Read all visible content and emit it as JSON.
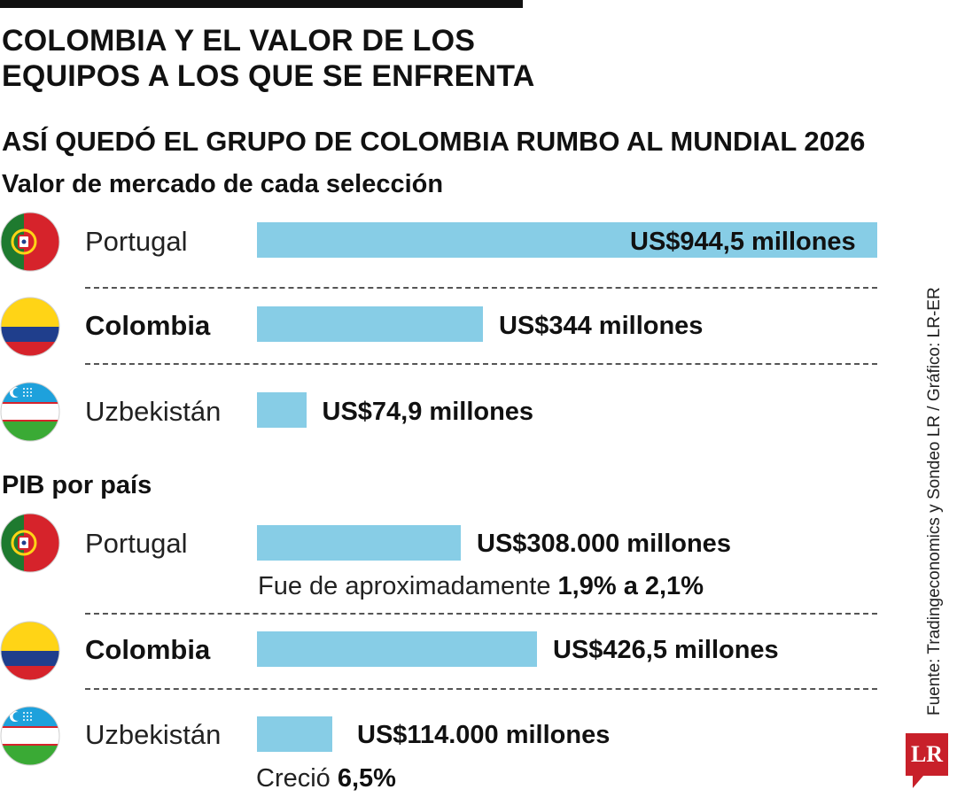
{
  "title": "COLOMBIA Y EL VALOR DE LOS EQUIPOS A LOS QUE SE ENFRENTA",
  "subtitle": "ASÍ QUEDÓ EL GRUPO DE COLOMBIA RUMBO AL MUNDIAL 2026",
  "source": "Fuente: Tradingeconomics y Sondeo LR / Gráfico: LR-ER",
  "logo": "LR",
  "colors": {
    "bar": "#87cde6",
    "portugal_red": "#d6232b",
    "portugal_green": "#1e7a2f",
    "colombia_yellow": "#ffd416",
    "colombia_blue": "#1f3e8c",
    "colombia_red": "#d6232b",
    "uzbek_blue": "#1ea1dc",
    "uzbek_green": "#3aaa35",
    "logo_red": "#c8202a"
  },
  "chart_data": [
    {
      "type": "bar",
      "title": "Valor de mercado de cada selección",
      "categories": [
        "Portugal",
        "Colombia",
        "Uzbekistán"
      ],
      "values": [
        944.5,
        344,
        74.9
      ],
      "unit": "millones de US$",
      "value_labels": [
        "US$944,5 millones",
        "US$344 millones",
        "US$74,9 millones"
      ],
      "notes": [
        "",
        "",
        ""
      ]
    },
    {
      "type": "bar",
      "title": "PIB por país",
      "categories": [
        "Portugal",
        "Colombia",
        "Uzbekistán"
      ],
      "values": [
        308000,
        426.5,
        114000
      ],
      "unit": "millones de US$",
      "value_labels": [
        "US$308.000 millones",
        "US$426,5 millones",
        "US$114.000 millones"
      ],
      "notes": [
        {
          "prefix": "Fue de aproximadamente ",
          "emphasis": "1,9% a 2,1%"
        },
        "",
        {
          "prefix": "Creció ",
          "emphasis": "6,5%"
        }
      ]
    }
  ]
}
